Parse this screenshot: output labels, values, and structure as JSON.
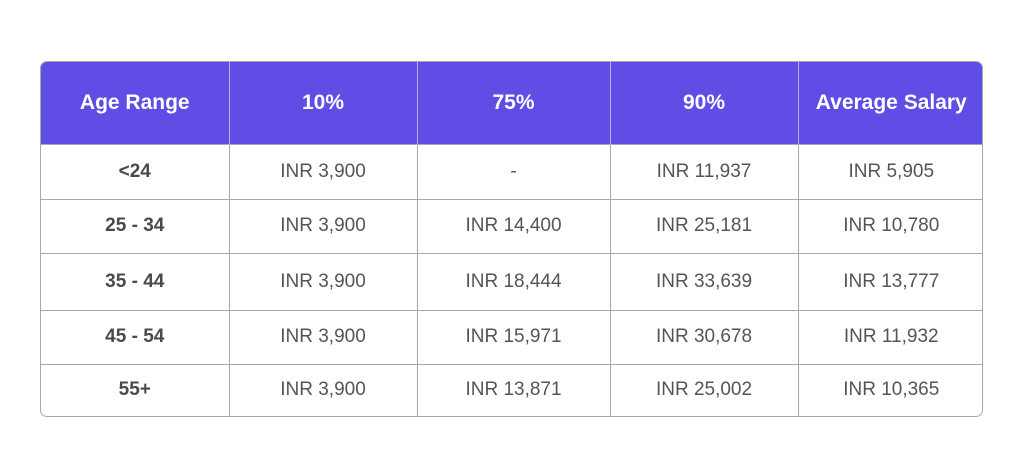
{
  "table": {
    "headers": [
      "Age Range",
      "10%",
      "75%",
      "90%",
      "Average Salary"
    ],
    "rows": [
      [
        "<24",
        "INR 3,900",
        "-",
        "INR 11,937",
        "INR 5,905"
      ],
      [
        "25 - 34",
        "INR 3,900",
        "INR 14,400",
        "INR 25,181",
        "INR 10,780"
      ],
      [
        "35 - 44",
        "INR 3,900",
        "INR 18,444",
        "INR 33,639",
        "INR 13,777"
      ],
      [
        "45 - 54",
        "INR 3,900",
        "INR 15,971",
        "INR 30,678",
        "INR 11,932"
      ],
      [
        "55+",
        "INR 3,900",
        "INR 13,871",
        "INR 25,002",
        "INR 10,365"
      ]
    ]
  },
  "colors": {
    "header_bg": "#5f4de6",
    "header_text": "#ffffff",
    "border": "#a8a8a8",
    "cell_text": "#555555"
  }
}
